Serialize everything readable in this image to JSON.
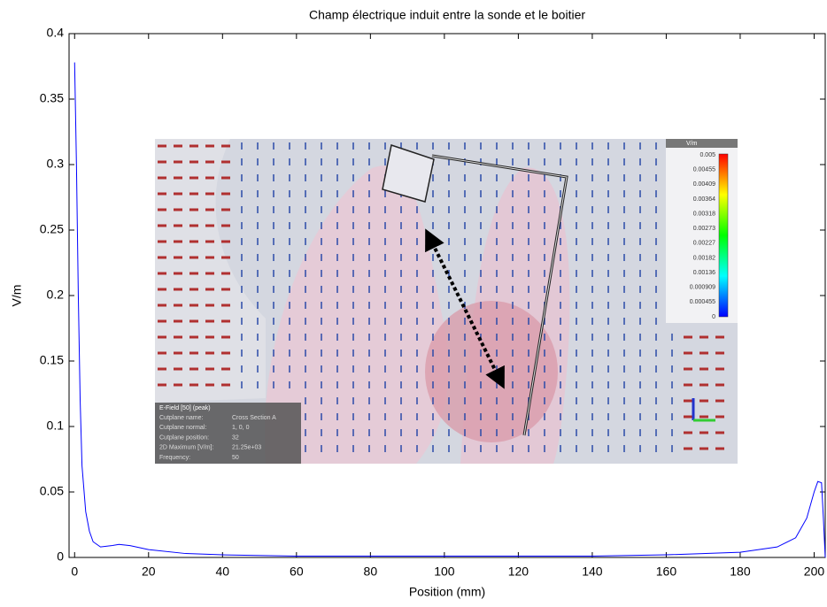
{
  "chart_data": {
    "type": "line",
    "title": "Champ électrique induit entre la sonde et le boitier",
    "x_label": "Position (mm)",
    "y_label": "V/m",
    "x": [
      0,
      0.5,
      1,
      1.5,
      2,
      3,
      4,
      5,
      7,
      10,
      12,
      15,
      20,
      30,
      40,
      60,
      80,
      100,
      120,
      140,
      160,
      180,
      190,
      195,
      198,
      200,
      201,
      202,
      202.5,
      203
    ],
    "series": [
      {
        "name": "E",
        "color": "#0000ff",
        "values": [
          0.378,
          0.3,
          0.2,
          0.12,
          0.07,
          0.035,
          0.02,
          0.012,
          0.008,
          0.009,
          0.01,
          0.009,
          0.006,
          0.003,
          0.002,
          0.001,
          0.001,
          0.001,
          0.001,
          0.001,
          0.002,
          0.004,
          0.008,
          0.015,
          0.03,
          0.05,
          0.058,
          0.057,
          0.03,
          0
        ]
      }
    ],
    "xlim": [
      -1.5,
      203
    ],
    "ylim": [
      0,
      0.4
    ],
    "xticks": [
      0,
      20,
      40,
      60,
      80,
      100,
      120,
      140,
      160,
      180,
      200
    ],
    "yticks": [
      0,
      0.05,
      0.1,
      0.15,
      0.2,
      0.25,
      0.3,
      0.35,
      0.4
    ],
    "legend": false
  },
  "inset": {
    "colorbar_title": "V/m",
    "colorbar_labels": [
      "0.005",
      "0.00455",
      "0.00409",
      "0.00364",
      "0.00318",
      "0.00273",
      "0.00227",
      "0.00182",
      "0.00136",
      "0.000909",
      "0.000455",
      "0"
    ],
    "info_title": "E-Field [50] (peak)",
    "info_rows": [
      [
        "Cutplane name:",
        "Cross Section A"
      ],
      [
        "Cutplane normal:",
        "1, 0, 0"
      ],
      [
        "Cutplane position:",
        "32"
      ],
      [
        "2D Maximum [V/m]:",
        "21.25e+03"
      ],
      [
        "Frequency:",
        "50"
      ]
    ]
  }
}
